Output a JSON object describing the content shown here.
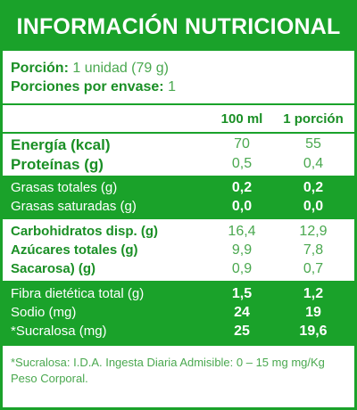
{
  "title": "INFORMACIÓN NUTRICIONAL",
  "portion": {
    "portion_label": "Porción:",
    "portion_value": "1 unidad (79 g)",
    "servings_label": "Porciones por envase:",
    "servings_value": "1"
  },
  "columns": [
    "100 ml",
    "1 porción"
  ],
  "groups": [
    {
      "style": "white",
      "rows": [
        {
          "label": "Energía (kcal)",
          "v100": "70",
          "vportion": "55"
        },
        {
          "label": "Proteínas (g)",
          "v100": "0,5",
          "vportion": "0,4"
        }
      ]
    },
    {
      "style": "green",
      "rows": [
        {
          "label": "Grasas totales (g)",
          "v100": "0,2",
          "vportion": "0,2"
        },
        {
          "label": "Grasas saturadas (g)",
          "v100": "0,0",
          "vportion": "0,0"
        }
      ]
    },
    {
      "style": "white",
      "rows": [
        {
          "label": "Carbohidratos disp. (g)",
          "v100": "16,4",
          "vportion": "12,9"
        },
        {
          "label": "Azúcares totales (g)",
          "v100": "9,9",
          "vportion": "7,8"
        },
        {
          "label": "Sacarosa) (g)",
          "v100": "0,9",
          "vportion": "0,7"
        }
      ]
    },
    {
      "style": "green",
      "rows": [
        {
          "label": "Fibra dietética total (g)",
          "v100": "1,5",
          "vportion": "1,2"
        },
        {
          "label": "Sodio (mg)",
          "v100": "24",
          "vportion": "19"
        },
        {
          "label": "*Sucralosa (mg)",
          "v100": "25",
          "vportion": "19,6"
        }
      ]
    }
  ],
  "footnote": "*Sucralosa: I.D.A. Ingesta Diaria Admisible: 0 – 15 mg mg/Kg Peso Corporal.",
  "colors": {
    "brand_green": "#1aa22a",
    "text_green": "#1a8f25",
    "value_green": "#4aa84f"
  }
}
